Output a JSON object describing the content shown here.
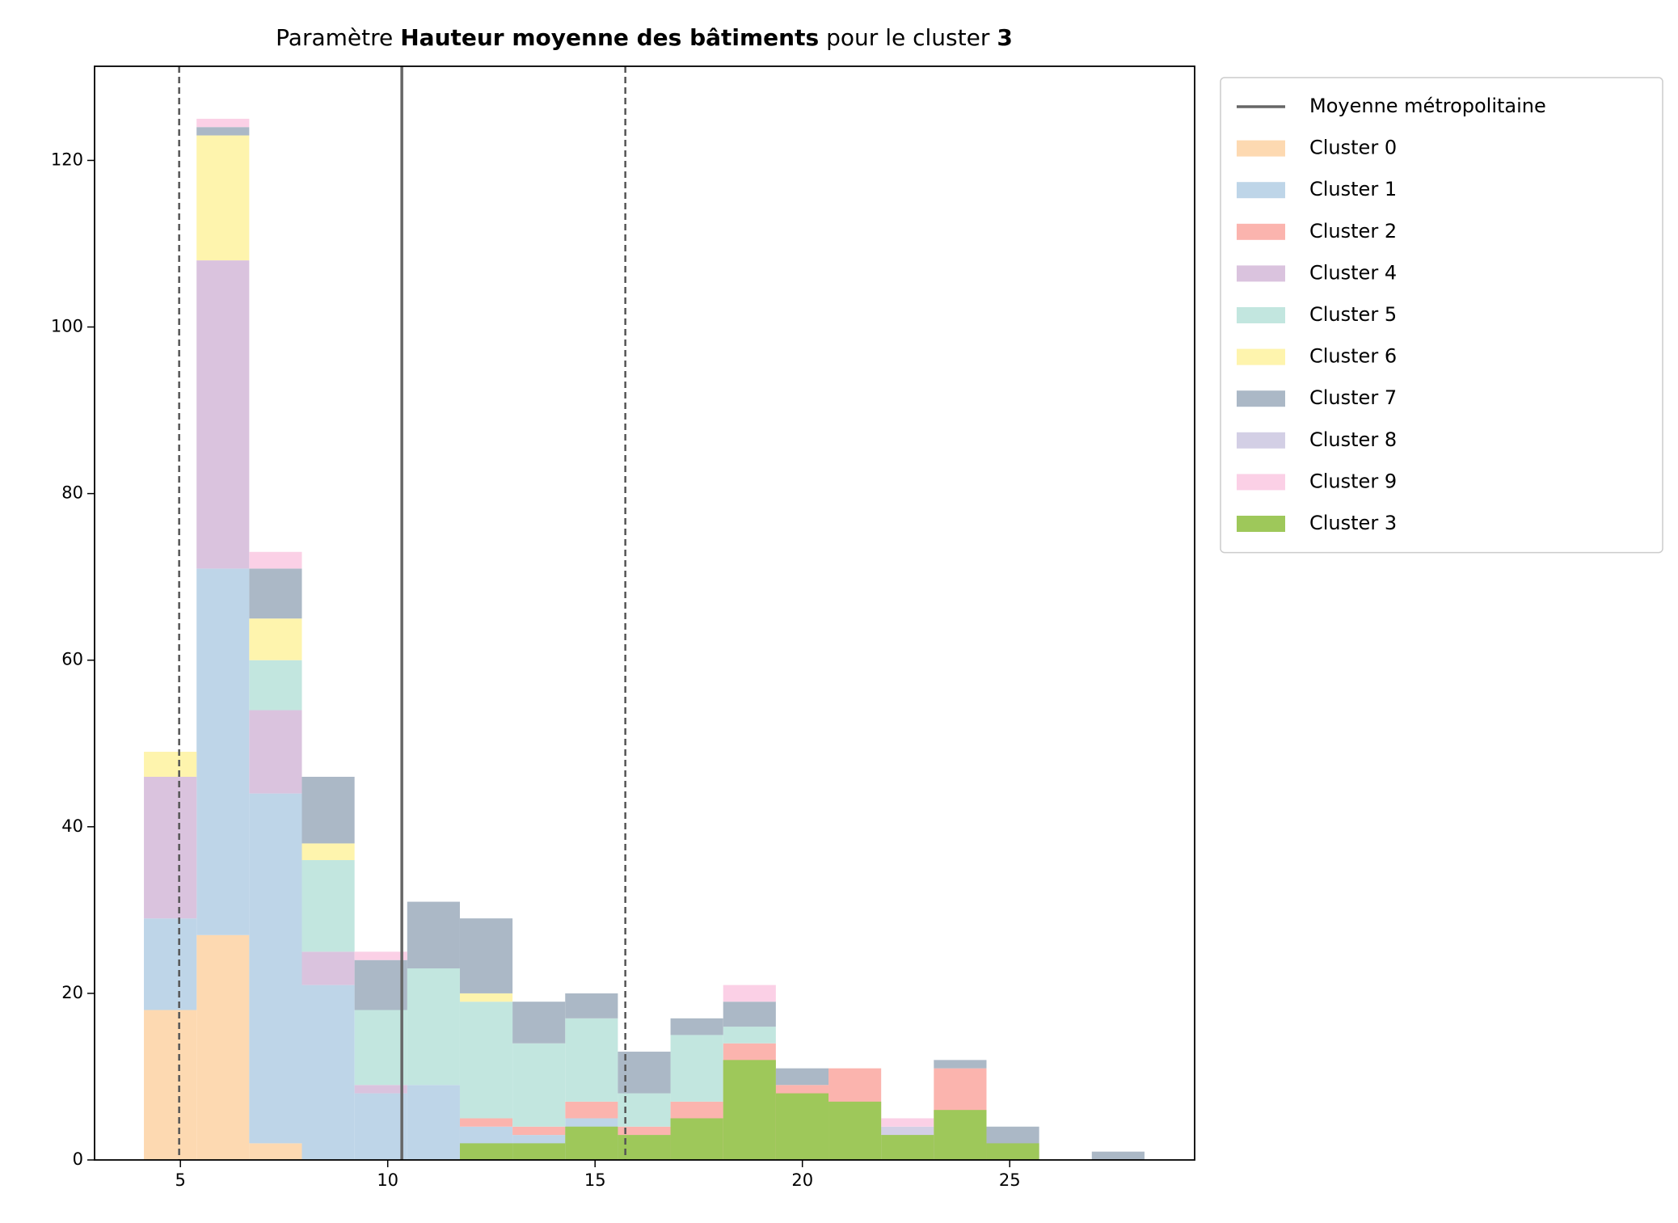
{
  "chart_data": {
    "type": "stacked_histogram",
    "title_parts": [
      {
        "text": "Paramètre",
        "bold": false
      },
      {
        "text": "Hauteur moyenne des bâtiments",
        "bold": true
      },
      {
        "text": "pour le cluster",
        "bold": false
      },
      {
        "text": "3",
        "bold": true
      }
    ],
    "bins": [
      4.12,
      5.39,
      6.66,
      7.93,
      9.2,
      10.47,
      11.74,
      13.01,
      14.28,
      15.55,
      16.82,
      18.09,
      19.36,
      20.63,
      21.9,
      23.17,
      24.44,
      25.71,
      26.98,
      28.25
    ],
    "series": [
      {
        "name": "Cluster 0",
        "color": "#fdd9b1",
        "values": [
          18,
          27,
          2,
          0,
          0,
          0,
          0,
          0,
          0,
          0,
          0,
          0,
          0,
          0,
          0,
          0,
          0,
          0,
          0
        ]
      },
      {
        "name": "Cluster 1",
        "color": "#bed5e8",
        "values": [
          11,
          44,
          42,
          21,
          8,
          9,
          4,
          3,
          5,
          3,
          0,
          0,
          0,
          0,
          0,
          0,
          0,
          0,
          0
        ]
      },
      {
        "name": "Cluster 2",
        "color": "#fbb4ae",
        "values": [
          0,
          0,
          0,
          0,
          0,
          0,
          1,
          1,
          2,
          1,
          7,
          14,
          9,
          11,
          0,
          11,
          0,
          0,
          0
        ]
      },
      {
        "name": "Cluster 4",
        "color": "#dac3de",
        "values": [
          17,
          37,
          10,
          4,
          1,
          0,
          0,
          0,
          0,
          0,
          0,
          0,
          0,
          0,
          0,
          0,
          0,
          0,
          0
        ]
      },
      {
        "name": "Cluster 5",
        "color": "#c2e6df",
        "values": [
          0,
          0,
          6,
          11,
          9,
          14,
          14,
          10,
          10,
          4,
          8,
          2,
          0,
          0,
          0,
          0,
          0,
          0,
          0
        ]
      },
      {
        "name": "Cluster 6",
        "color": "#fef4ad",
        "values": [
          3,
          15,
          5,
          2,
          0,
          0,
          1,
          0,
          0,
          0,
          0,
          0,
          0,
          0,
          0,
          0,
          0,
          0,
          0
        ]
      },
      {
        "name": "Cluster 7",
        "color": "#abb8c6",
        "values": [
          0,
          1,
          6,
          8,
          6,
          8,
          9,
          5,
          3,
          5,
          2,
          3,
          2,
          0,
          0,
          1,
          4,
          0,
          1
        ]
      },
      {
        "name": "Cluster 8",
        "color": "#d3cfe5",
        "values": [
          0,
          0,
          0,
          0,
          0,
          0,
          0,
          0,
          0,
          0,
          0,
          0,
          0,
          0,
          4,
          0,
          0,
          0,
          0
        ]
      },
      {
        "name": "Cluster 9",
        "color": "#fbd0e6",
        "values": [
          0,
          1,
          2,
          0,
          1,
          0,
          0,
          0,
          0,
          0,
          0,
          2,
          0,
          0,
          1,
          0,
          0,
          0,
          0
        ]
      },
      {
        "name": "Cluster 3",
        "color": "#9ec85a",
        "overlay": true,
        "values": [
          0,
          0,
          0,
          0,
          0,
          0,
          2,
          2,
          4,
          3,
          5,
          12,
          8,
          7,
          3,
          6,
          2,
          0,
          0
        ]
      }
    ],
    "mean_line": {
      "name": "Moyenne métropolitaine",
      "value": 10.34,
      "color": "#666666"
    },
    "dashed_lines": [
      4.97,
      15.73
    ],
    "xlim": [
      2.93,
      29.46
    ],
    "xticks": [
      5,
      10,
      15,
      20,
      25
    ],
    "ylim": [
      0,
      131.3
    ],
    "yticks": [
      0,
      20,
      40,
      60,
      80,
      100,
      120
    ],
    "legend": "outside upper right"
  }
}
